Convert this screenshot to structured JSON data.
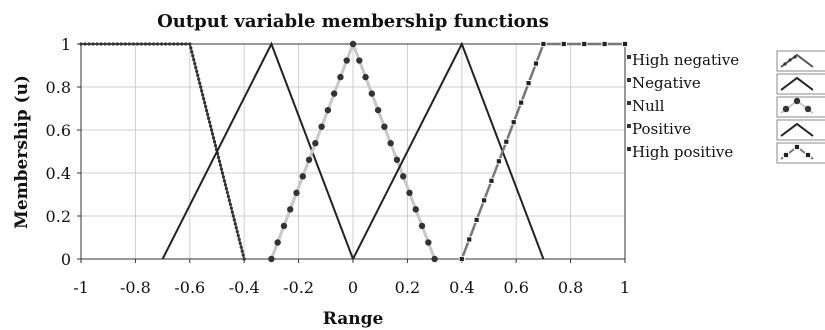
{
  "chart_data": {
    "type": "line",
    "title": "Output variable membership functions",
    "xlabel": "Range",
    "ylabel": "Membership (u)",
    "xlim": [
      -1,
      1
    ],
    "ylim": [
      0,
      1
    ],
    "xticks": [
      -1,
      -0.8,
      -0.6,
      -0.4,
      -0.2,
      0,
      0.2,
      0.4,
      0.6,
      0.8,
      1
    ],
    "xtick_labels": [
      "-1",
      "-0.8",
      "-0.6",
      "-0.4",
      "-0.2",
      "0",
      "0.2",
      "0.4",
      "0.6",
      "0.8",
      "1"
    ],
    "yticks": [
      0,
      0.2,
      0.4,
      0.6,
      0.8,
      1
    ],
    "ytick_labels": [
      "0",
      "0.2",
      "0.4",
      "0.6",
      "0.8",
      "1"
    ],
    "grid": true,
    "legend_position": "right",
    "series": [
      {
        "name": "High negative",
        "color": "#555555",
        "marker": "dot",
        "x": [
          -1,
          -0.6,
          -0.4
        ],
        "y": [
          1,
          1,
          0
        ]
      },
      {
        "name": "Negative",
        "color": "#222222",
        "marker": "none",
        "x": [
          -0.7,
          -0.3,
          0
        ],
        "y": [
          0,
          1,
          0
        ]
      },
      {
        "name": "Null",
        "color": "#c8c8c8",
        "marker": "asterisk",
        "x": [
          -0.3,
          0,
          0.3
        ],
        "y": [
          0,
          1,
          0
        ]
      },
      {
        "name": "Positive",
        "color": "#222222",
        "marker": "none",
        "x": [
          0,
          0.4,
          0.7
        ],
        "y": [
          0,
          1,
          0
        ]
      },
      {
        "name": "High positive",
        "color": "#777777",
        "marker": "square",
        "x": [
          0.4,
          0.7,
          1
        ],
        "y": [
          0,
          1,
          1
        ]
      }
    ]
  }
}
